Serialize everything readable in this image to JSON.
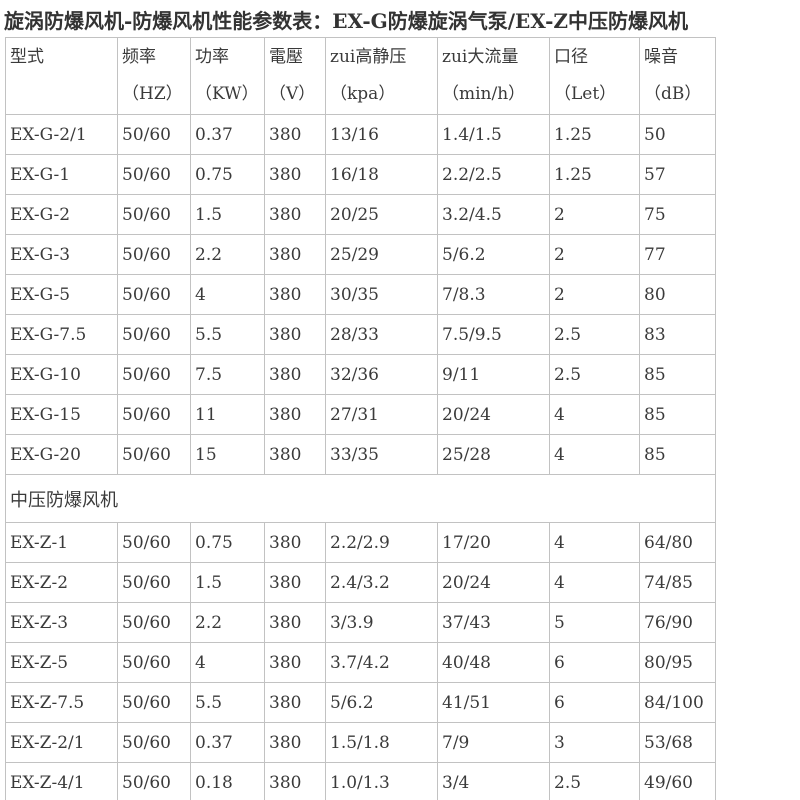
{
  "title": "旋涡防爆风机-防爆风机性能参数表：EX-G防爆旋涡气泵/EX-Z中压防爆风机",
  "table": {
    "columns": [
      {
        "key": "model",
        "label": "型式",
        "unit": ""
      },
      {
        "key": "frequency",
        "label": "频率",
        "unit": "（HZ）"
      },
      {
        "key": "power",
        "label": "功率",
        "unit": "（KW）"
      },
      {
        "key": "voltage",
        "label": "電壓",
        "unit": "（V）"
      },
      {
        "key": "max-static-pressure",
        "label": "zui高静压",
        "unit": "（kpa）"
      },
      {
        "key": "max-flow",
        "label": "zui大流量",
        "unit": "（min/h）"
      },
      {
        "key": "diameter",
        "label": "口径",
        "unit": "（Let）"
      },
      {
        "key": "noise",
        "label": "噪音",
        "unit": "（dB）"
      }
    ],
    "sections": [
      {
        "label": null,
        "rows": [
          [
            "EX-G-2/1",
            "50/60",
            "0.37",
            "380",
            "13/16",
            "1.4/1.5",
            "1.25",
            "50"
          ],
          [
            "EX-G-1",
            "50/60",
            "0.75",
            "380",
            "16/18",
            "2.2/2.5",
            "1.25",
            "57"
          ],
          [
            "EX-G-2",
            "50/60",
            "1.5",
            "380",
            "20/25",
            "3.2/4.5",
            "2",
            "75"
          ],
          [
            "EX-G-3",
            "50/60",
            "2.2",
            "380",
            "25/29",
            "5/6.2",
            "2",
            "77"
          ],
          [
            "EX-G-5",
            "50/60",
            "4",
            "380",
            "30/35",
            "7/8.3",
            "2",
            "80"
          ],
          [
            "EX-G-7.5",
            "50/60",
            "5.5",
            "380",
            "28/33",
            "7.5/9.5",
            "2.5",
            "83"
          ],
          [
            "EX-G-10",
            "50/60",
            "7.5",
            "380",
            "32/36",
            "9/11",
            "2.5",
            "85"
          ],
          [
            "EX-G-15",
            "50/60",
            "11",
            "380",
            "27/31",
            "20/24",
            "4",
            "85"
          ],
          [
            "EX-G-20",
            "50/60",
            "15",
            "380",
            "33/35",
            "25/28",
            "4",
            "85"
          ]
        ]
      },
      {
        "label": "中压防爆风机",
        "rows": [
          [
            "EX-Z-1",
            "50/60",
            "0.75",
            "380",
            "2.2/2.9",
            "17/20",
            "4",
            "64/80"
          ],
          [
            "EX-Z-2",
            "50/60",
            "1.5",
            "380",
            "2.4/3.2",
            "20/24",
            "4",
            "74/85"
          ],
          [
            "EX-Z-3",
            "50/60",
            "2.2",
            "380",
            "3/3.9",
            "37/43",
            "5",
            "76/90"
          ],
          [
            "EX-Z-5",
            "50/60",
            "4",
            "380",
            "3.7/4.2",
            "40/48",
            "6",
            "80/95"
          ],
          [
            "EX-Z-7.5",
            "50/60",
            "5.5",
            "380",
            "5/6.2",
            "41/51",
            "6",
            "84/100"
          ],
          [
            "EX-Z-2/1",
            "50/60",
            "0.37",
            "380",
            "1.5/1.8",
            "7/9",
            "3",
            "53/68"
          ],
          [
            "EX-Z-4/1",
            "50/60",
            "0.18",
            "380",
            "1.0/1.3",
            "3/4",
            "2.5",
            "49/60"
          ]
        ]
      }
    ]
  },
  "colors": {
    "text": "#3a3a3a",
    "border": "#c2c2c2",
    "background": "#ffffff"
  }
}
